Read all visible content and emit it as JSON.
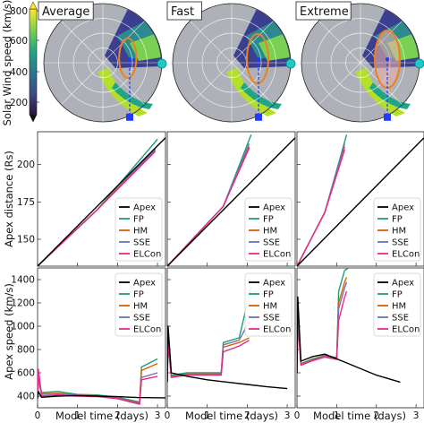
{
  "colorbar": {
    "label": "Solar Wind speed (km/s)",
    "ticks": [
      "800",
      "600",
      "400",
      "200"
    ]
  },
  "polar_panels": [
    {
      "title": "Average"
    },
    {
      "title": "Fast"
    },
    {
      "title": "Extreme"
    }
  ],
  "chart_data": [
    {
      "type": "line",
      "panel": "apex-distance-average",
      "xlabel": "",
      "ylabel": "Apex distance (Rs)",
      "xlim": [
        0,
        3.2
      ],
      "ylim": [
        132,
        222
      ],
      "yticks": [
        150,
        175,
        200
      ],
      "series": [
        {
          "name": "Apex",
          "color": "#000000",
          "x": [
            0,
            3.2
          ],
          "y": [
            132,
            218
          ]
        },
        {
          "name": "FP",
          "color": "#1b9e77",
          "x": [
            0,
            1.5,
            3.0
          ],
          "y": [
            132,
            170,
            217
          ]
        },
        {
          "name": "HM",
          "color": "#d95f02",
          "x": [
            0,
            1.5,
            2.95
          ],
          "y": [
            132,
            170,
            211
          ]
        },
        {
          "name": "SSE",
          "color": "#7570b3",
          "x": [
            0,
            1.5,
            2.95
          ],
          "y": [
            132,
            170,
            210
          ]
        },
        {
          "name": "ELCon",
          "color": "#e7298a",
          "x": [
            0,
            1.5,
            2.95
          ],
          "y": [
            132,
            170,
            209
          ]
        }
      ]
    },
    {
      "type": "line",
      "panel": "apex-distance-fast",
      "xlim": [
        0,
        3.2
      ],
      "ylim": [
        132,
        222
      ],
      "series": [
        {
          "name": "Apex",
          "color": "#000000",
          "x": [
            0,
            3.2
          ],
          "y": [
            132,
            218
          ]
        },
        {
          "name": "FP",
          "color": "#1b9e77",
          "x": [
            0,
            1.4,
            2.1
          ],
          "y": [
            132,
            172,
            220
          ]
        },
        {
          "name": "HM",
          "color": "#d95f02",
          "x": [
            0,
            1.4,
            2.05
          ],
          "y": [
            132,
            172,
            212
          ]
        },
        {
          "name": "SSE",
          "color": "#7570b3",
          "x": [
            0,
            1.4,
            2.05
          ],
          "y": [
            132,
            172,
            214
          ]
        },
        {
          "name": "ELCon",
          "color": "#e7298a",
          "x": [
            0,
            1.4,
            2.05
          ],
          "y": [
            132,
            172,
            211
          ]
        }
      ]
    },
    {
      "type": "line",
      "panel": "apex-distance-extreme",
      "xlim": [
        0,
        3.2
      ],
      "ylim": [
        132,
        222
      ],
      "series": [
        {
          "name": "Apex",
          "color": "#000000",
          "x": [
            0,
            3.2
          ],
          "y": [
            132,
            218
          ]
        },
        {
          "name": "FP",
          "color": "#1b9e77",
          "x": [
            0,
            0.7,
            1.25
          ],
          "y": [
            132,
            168,
            220
          ]
        },
        {
          "name": "HM",
          "color": "#d95f02",
          "x": [
            0,
            0.7,
            1.2
          ],
          "y": [
            132,
            168,
            212
          ]
        },
        {
          "name": "SSE",
          "color": "#7570b3",
          "x": [
            0,
            0.7,
            1.2
          ],
          "y": [
            132,
            168,
            214
          ]
        },
        {
          "name": "ELCon",
          "color": "#e7298a",
          "x": [
            0,
            0.7,
            1.2
          ],
          "y": [
            132,
            168,
            210
          ]
        }
      ]
    },
    {
      "type": "line",
      "panel": "apex-speed-average",
      "xlabel": "Model time (days)",
      "ylabel": "Apex speed (km/s)",
      "xlim": [
        0,
        3.2
      ],
      "ylim": [
        300,
        1500
      ],
      "xticks": [
        0,
        1,
        2,
        3
      ],
      "yticks": [
        400,
        600,
        800,
        1000,
        1200,
        1400
      ],
      "series": [
        {
          "name": "Apex",
          "color": "#000000",
          "x": [
            0,
            0.02,
            0.1,
            0.5,
            1.0,
            1.5,
            2.0,
            2.5,
            3.2
          ],
          "y": [
            380,
            440,
            390,
            400,
            405,
            400,
            395,
            388,
            385
          ]
        },
        {
          "name": "FP",
          "color": "#1b9e77",
          "x": [
            0,
            0.02,
            0.1,
            0.5,
            1.0,
            1.5,
            2.0,
            2.55,
            2.6,
            3.0
          ],
          "y": [
            380,
            560,
            430,
            440,
            415,
            410,
            390,
            350,
            650,
            720
          ]
        },
        {
          "name": "HM",
          "color": "#d95f02",
          "x": [
            0,
            0.02,
            0.1,
            0.5,
            1.0,
            1.5,
            2.0,
            2.55,
            2.6,
            3.0
          ],
          "y": [
            380,
            590,
            420,
            425,
            410,
            405,
            385,
            340,
            620,
            680
          ]
        },
        {
          "name": "SSE",
          "color": "#7570b3",
          "x": [
            0,
            0.02,
            0.1,
            0.5,
            1.0,
            1.5,
            2.0,
            2.55,
            2.6,
            3.0
          ],
          "y": [
            380,
            540,
            415,
            420,
            408,
            400,
            382,
            335,
            560,
            600
          ]
        },
        {
          "name": "ELCon",
          "color": "#e7298a",
          "x": [
            0,
            0.02,
            0.1,
            0.5,
            1.0,
            1.5,
            2.0,
            2.55,
            2.6,
            3.0
          ],
          "y": [
            380,
            630,
            400,
            410,
            400,
            395,
            378,
            330,
            540,
            570
          ]
        }
      ]
    },
    {
      "type": "line",
      "panel": "apex-speed-fast",
      "xlabel": "Model time (days)",
      "xlim": [
        0,
        3.2
      ],
      "ylim": [
        300,
        1500
      ],
      "xticks": [
        0,
        1,
        2,
        3
      ],
      "series": [
        {
          "name": "Apex",
          "color": "#000000",
          "x": [
            0,
            0.02,
            0.1,
            0.5,
            1.0,
            1.5,
            2.0,
            2.5,
            3.0
          ],
          "y": [
            520,
            1000,
            600,
            570,
            540,
            520,
            500,
            480,
            465
          ]
        },
        {
          "name": "FP",
          "color": "#1b9e77",
          "x": [
            0,
            0.02,
            0.1,
            0.5,
            1.0,
            1.35,
            1.4,
            1.8,
            2.1
          ],
          "y": [
            520,
            940,
            580,
            600,
            600,
            600,
            860,
            900,
            1340
          ]
        },
        {
          "name": "HM",
          "color": "#d95f02",
          "x": [
            0,
            0.02,
            0.1,
            0.5,
            1.0,
            1.35,
            1.4,
            1.8,
            2.05
          ],
          "y": [
            520,
            900,
            570,
            590,
            590,
            590,
            820,
            860,
            900
          ]
        },
        {
          "name": "SSE",
          "color": "#7570b3",
          "x": [
            0,
            0.02,
            0.1,
            0.5,
            1.0,
            1.35,
            1.4,
            1.8,
            2.05
          ],
          "y": [
            520,
            880,
            565,
            585,
            585,
            585,
            840,
            880,
            1040
          ]
        },
        {
          "name": "ELCon",
          "color": "#e7298a",
          "x": [
            0,
            0.02,
            0.1,
            0.5,
            1.0,
            1.35,
            1.4,
            1.8,
            2.05
          ],
          "y": [
            520,
            860,
            560,
            580,
            580,
            580,
            780,
            830,
            880
          ]
        }
      ]
    },
    {
      "type": "line",
      "panel": "apex-speed-extreme",
      "xlabel": "Model time (days)",
      "xlim": [
        0,
        3.2
      ],
      "ylim": [
        300,
        1500
      ],
      "xticks": [
        0,
        1,
        2,
        3
      ],
      "series": [
        {
          "name": "Apex",
          "color": "#000000",
          "x": [
            0,
            0.02,
            0.1,
            0.4,
            0.7,
            1.0,
            1.5,
            2.0,
            2.6
          ],
          "y": [
            600,
            1250,
            700,
            740,
            760,
            720,
            650,
            580,
            520
          ]
        },
        {
          "name": "FP",
          "color": "#1b9e77",
          "x": [
            0,
            0.02,
            0.1,
            0.4,
            0.7,
            1.0,
            1.05,
            1.2,
            1.3
          ],
          "y": [
            600,
            1150,
            680,
            720,
            750,
            730,
            1300,
            1480,
            1500
          ]
        },
        {
          "name": "HM",
          "color": "#d95f02",
          "x": [
            0,
            0.02,
            0.1,
            0.4,
            0.7,
            1.0,
            1.05,
            1.2,
            1.25
          ],
          "y": [
            600,
            1100,
            675,
            715,
            745,
            725,
            1200,
            1380,
            1420
          ]
        },
        {
          "name": "SSE",
          "color": "#7570b3",
          "x": [
            0,
            0.02,
            0.1,
            0.4,
            0.7,
            1.0,
            1.05,
            1.2,
            1.25
          ],
          "y": [
            600,
            1080,
            670,
            710,
            740,
            720,
            1150,
            1330,
            1380
          ]
        },
        {
          "name": "ELCon",
          "color": "#e7298a",
          "x": [
            0,
            0.02,
            0.1,
            0.4,
            0.7,
            1.0,
            1.05,
            1.2,
            1.25
          ],
          "y": [
            600,
            1050,
            665,
            705,
            735,
            715,
            1050,
            1250,
            1300
          ]
        }
      ]
    }
  ],
  "legend_labels": [
    "Apex",
    "FP",
    "HM",
    "SSE",
    "ELCon"
  ],
  "colors": {
    "Apex": "#000000",
    "FP": "#1b9e77",
    "HM": "#d95f02",
    "SSE": "#7570b3",
    "ELCon": "#e7298a",
    "marker": "#1e3cff",
    "earth": "#1fc9c9",
    "cme_outline": "#f07f1e"
  }
}
